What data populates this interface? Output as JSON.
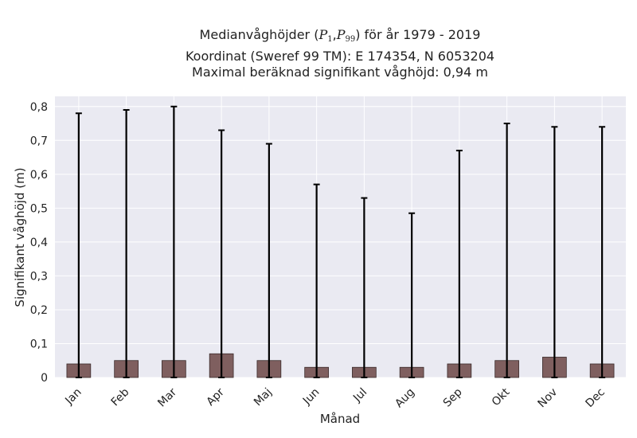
{
  "chart_data": {
    "type": "bar",
    "title": {
      "line1_prefix": "Medianvåghöjder (",
      "p1_symbol": "P",
      "p1_sub": "1",
      "separator": ",",
      "p99_symbol": "P",
      "p99_sub": "99",
      "line1_suffix": ") för år 1979 - 2019",
      "line2": "Koordinat (Sweref 99 TM): E 174354, N 6053204",
      "line3": "Maximal beräknad signifikant våghöjd: 0,94 m"
    },
    "xlabel": "Månad",
    "ylabel": "Signifikant våghöjd (m)",
    "categories": [
      "Jan",
      "Feb",
      "Mar",
      "Apr",
      "Maj",
      "Jun",
      "Jul",
      "Aug",
      "Sep",
      "Okt",
      "Nov",
      "Dec"
    ],
    "series": [
      {
        "values": [
          0.04,
          0.05,
          0.05,
          0.07,
          0.05,
          0.03,
          0.03,
          0.03,
          0.04,
          0.05,
          0.06,
          0.04
        ],
        "error_low": [
          0.0,
          0.0,
          0.0,
          0.0,
          0.0,
          0.0,
          0.0,
          0.0,
          0.0,
          0.0,
          0.0,
          0.0
        ],
        "error_high": [
          0.78,
          0.79,
          0.8,
          0.73,
          0.69,
          0.57,
          0.53,
          0.485,
          0.67,
          0.75,
          0.74,
          0.74
        ]
      }
    ],
    "ylim": [
      0,
      0.83
    ],
    "yticks": [
      0,
      0.1,
      0.2,
      0.3,
      0.4,
      0.5,
      0.6,
      0.7,
      0.8
    ],
    "ytick_labels": [
      "0",
      "0,1",
      "0,2",
      "0,3",
      "0,4",
      "0,5",
      "0,6",
      "0,7",
      "0,8"
    ],
    "grid": true,
    "colors": {
      "bar": "#7f5f5f",
      "bar_edge": "#3a2a2a",
      "error": "#000000",
      "plot_background": "#eaeaf2",
      "grid": "#ffffff"
    }
  }
}
